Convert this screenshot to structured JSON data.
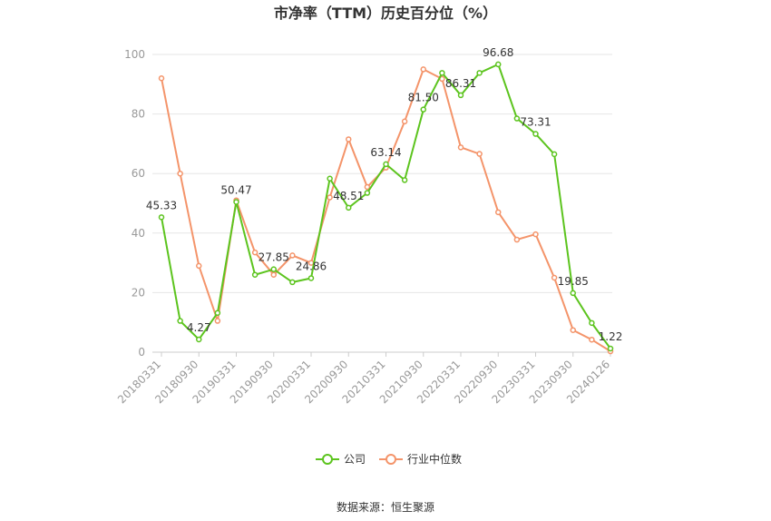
{
  "source_label": "数据来源：恒生聚源",
  "colors": {
    "company": "#5cc41e",
    "industry": "#f4946a"
  },
  "chart_data": {
    "type": "line",
    "title": "市净率（TTM）历史百分位（%）",
    "ylim": [
      0,
      100
    ],
    "yticks": [
      0,
      20,
      40,
      60,
      80,
      100
    ],
    "grid": true,
    "legend_position": "bottom-center",
    "x": [
      "20180331",
      "20180630",
      "20180930",
      "20181231",
      "20190331",
      "20190630",
      "20190930",
      "20191231",
      "20200331",
      "20200630",
      "20200930",
      "20201231",
      "20210331",
      "20210630",
      "20210930",
      "20211231",
      "20220331",
      "20220630",
      "20220930",
      "20221231",
      "20230331",
      "20230630",
      "20230930",
      "20231231",
      "20240126"
    ],
    "xtick_labels": [
      "20180331",
      "20180930",
      "20190331",
      "20190930",
      "20200331",
      "20200930",
      "20210331",
      "20210930",
      "20220331",
      "20220930",
      "20230331",
      "20230930",
      "20240126"
    ],
    "series": [
      {
        "name": "公司",
        "values": [
          45.33,
          10.5,
          4.27,
          13.2,
          50.47,
          26.0,
          27.85,
          23.5,
          24.86,
          58.3,
          48.51,
          53.5,
          63.14,
          57.8,
          81.5,
          93.8,
          86.31,
          93.8,
          96.68,
          78.5,
          73.31,
          66.5,
          19.85,
          9.8,
          1.22
        ]
      },
      {
        "name": "行业中位数",
        "values": [
          92.0,
          60.0,
          29.0,
          10.5,
          51.0,
          33.5,
          26.0,
          32.5,
          30.0,
          52.0,
          71.5,
          55.5,
          62.0,
          77.5,
          95.0,
          91.8,
          68.8,
          66.6,
          47.0,
          37.8,
          39.6,
          25.0,
          7.4,
          4.2,
          0.3
        ]
      }
    ],
    "data_labels": [
      {
        "index": 0,
        "text": "45.33"
      },
      {
        "index": 2,
        "text": "4.27"
      },
      {
        "index": 4,
        "text": "50.47"
      },
      {
        "index": 6,
        "text": "27.85"
      },
      {
        "index": 8,
        "text": "24.86"
      },
      {
        "index": 10,
        "text": "48.51"
      },
      {
        "index": 12,
        "text": "63.14"
      },
      {
        "index": 14,
        "text": "81.50"
      },
      {
        "index": 16,
        "text": "86.31"
      },
      {
        "index": 18,
        "text": "96.68"
      },
      {
        "index": 20,
        "text": "73.31"
      },
      {
        "index": 22,
        "text": "19.85"
      },
      {
        "index": 24,
        "text": "1.22"
      }
    ]
  }
}
